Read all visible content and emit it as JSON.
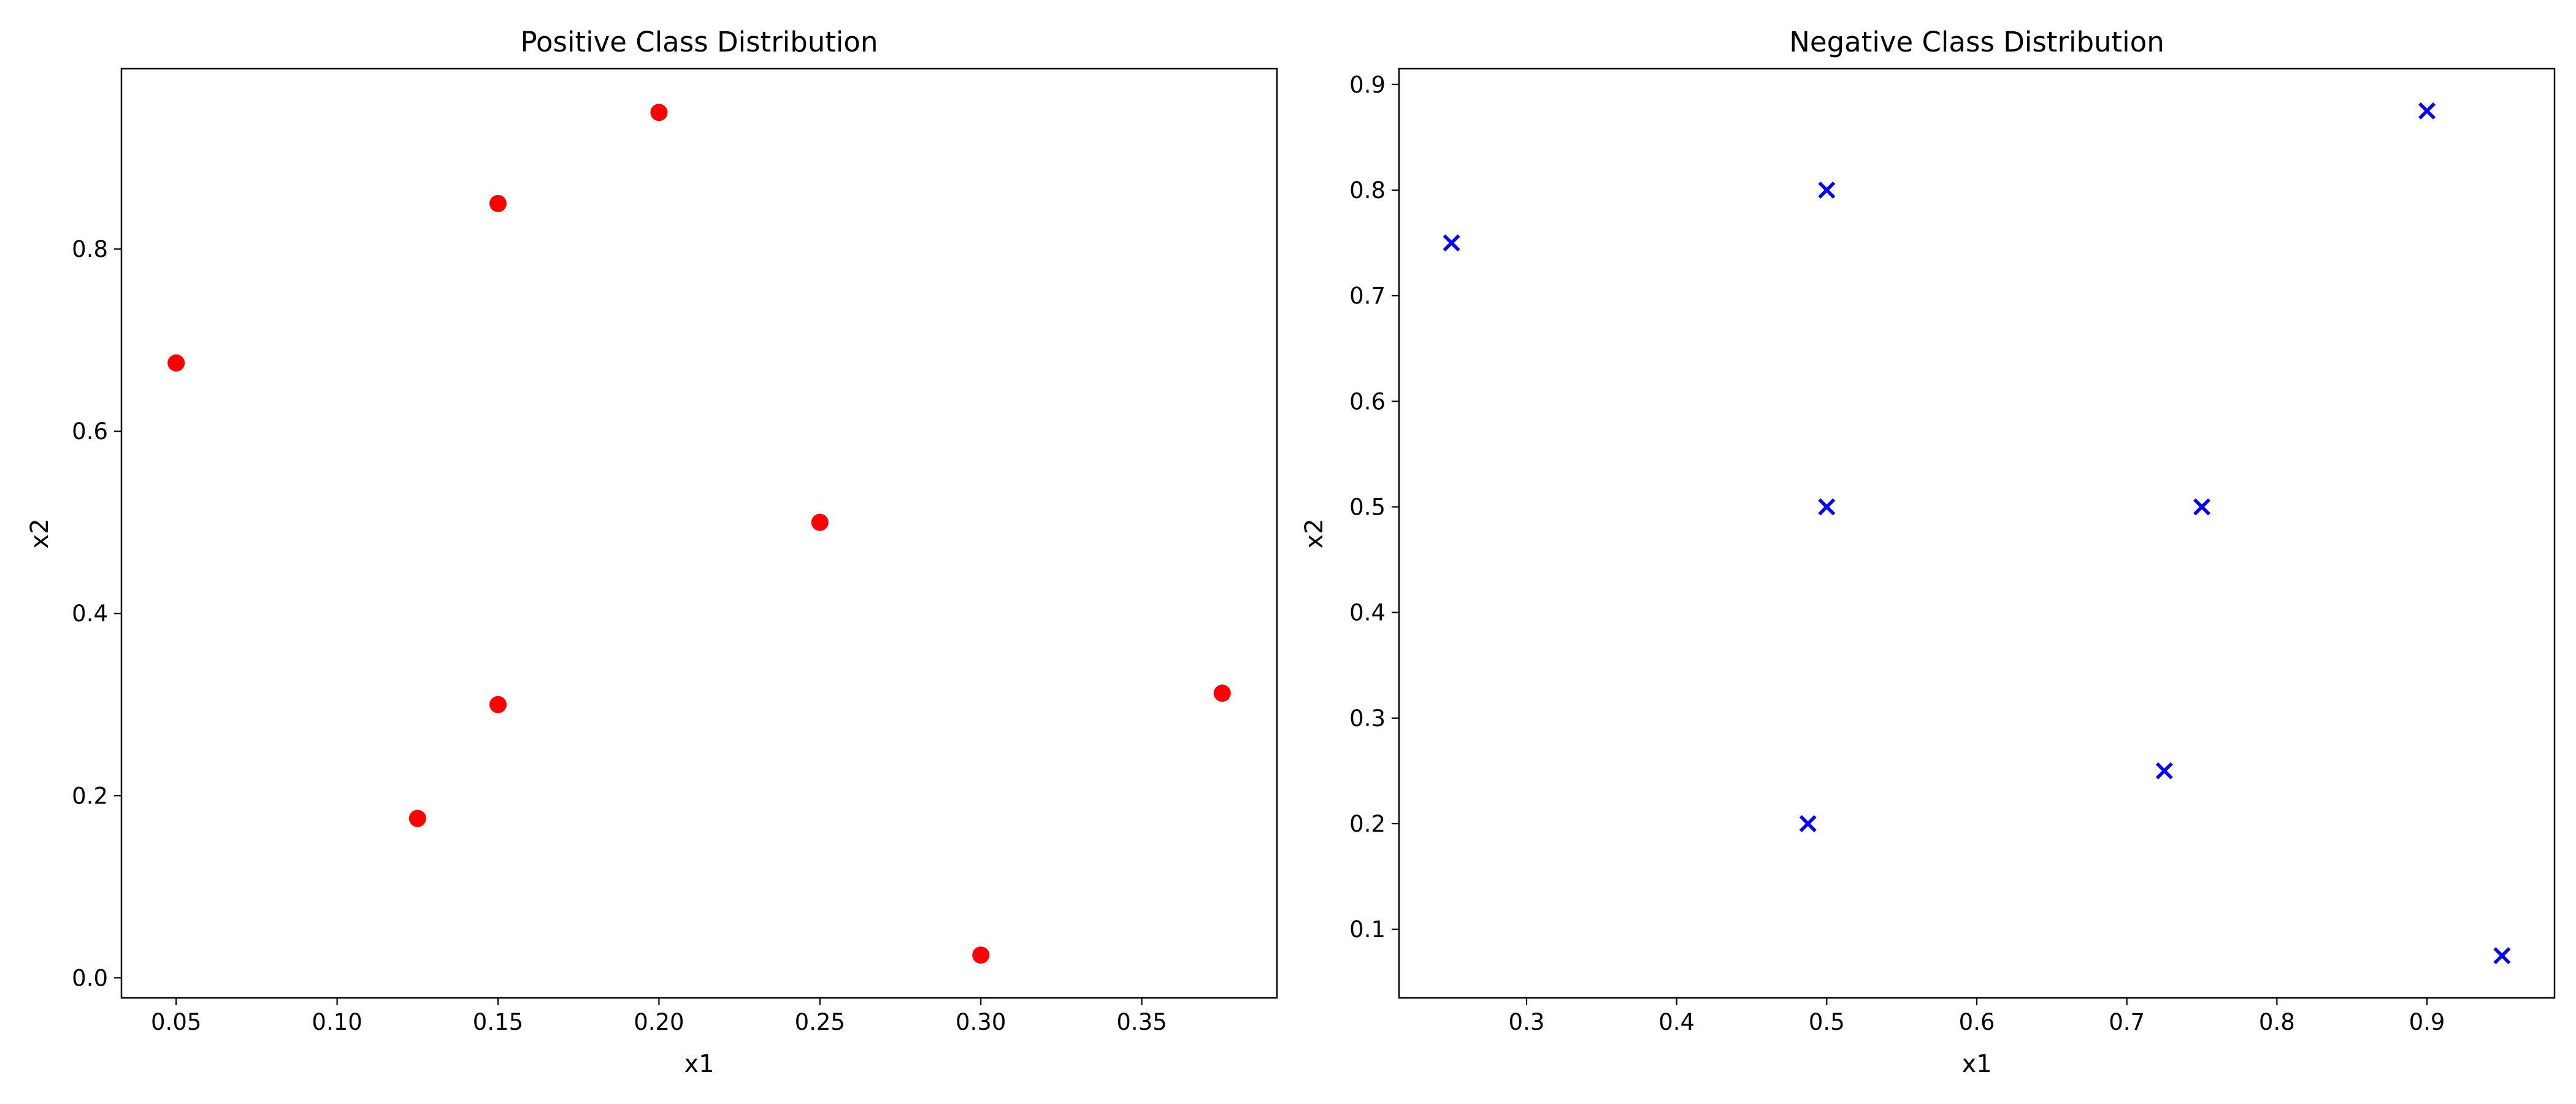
{
  "chart_data": [
    {
      "type": "scatter",
      "title": "Positive Class Distribution",
      "xlabel": "x1",
      "ylabel": "x2",
      "xlim": [
        0.033,
        0.392
      ],
      "ylim": [
        -0.022,
        0.998
      ],
      "xticks": [
        0.05,
        0.1,
        0.15,
        0.2,
        0.25,
        0.3,
        0.35
      ],
      "xtick_labels": [
        "0.05",
        "0.10",
        "0.15",
        "0.20",
        "0.25",
        "0.30",
        "0.35"
      ],
      "yticks": [
        0.0,
        0.2,
        0.4,
        0.6,
        0.8
      ],
      "ytick_labels": [
        "0.0",
        "0.2",
        "0.4",
        "0.6",
        "0.8"
      ],
      "grid": false,
      "series": [
        {
          "marker": "circle",
          "color": "#ff0000",
          "points": [
            {
              "x": 0.05,
              "y": 0.675
            },
            {
              "x": 0.125,
              "y": 0.175
            },
            {
              "x": 0.15,
              "y": 0.85
            },
            {
              "x": 0.15,
              "y": 0.3
            },
            {
              "x": 0.2,
              "y": 0.95
            },
            {
              "x": 0.25,
              "y": 0.5
            },
            {
              "x": 0.3,
              "y": 0.025
            },
            {
              "x": 0.375,
              "y": 0.3125
            }
          ]
        }
      ]
    },
    {
      "type": "scatter",
      "title": "Negative Class Distribution",
      "xlabel": "x1",
      "ylabel": "x2",
      "xlim": [
        0.215,
        0.985
      ],
      "ylim": [
        0.035,
        0.915
      ],
      "xticks": [
        0.3,
        0.4,
        0.5,
        0.6,
        0.7,
        0.8,
        0.9
      ],
      "xtick_labels": [
        "0.3",
        "0.4",
        "0.5",
        "0.6",
        "0.7",
        "0.8",
        "0.9"
      ],
      "yticks": [
        0.1,
        0.2,
        0.3,
        0.4,
        0.5,
        0.6,
        0.7,
        0.8,
        0.9
      ],
      "ytick_labels": [
        "0.1",
        "0.2",
        "0.3",
        "0.4",
        "0.5",
        "0.6",
        "0.7",
        "0.8",
        "0.9"
      ],
      "grid": false,
      "series": [
        {
          "marker": "x",
          "color": "#0000ff",
          "points": [
            {
              "x": 0.25,
              "y": 0.75
            },
            {
              "x": 0.4875,
              "y": 0.2
            },
            {
              "x": 0.5,
              "y": 0.8
            },
            {
              "x": 0.5,
              "y": 0.5
            },
            {
              "x": 0.725,
              "y": 0.25
            },
            {
              "x": 0.75,
              "y": 0.5
            },
            {
              "x": 0.9,
              "y": 0.875
            },
            {
              "x": 0.95,
              "y": 0.075
            }
          ]
        }
      ]
    }
  ]
}
